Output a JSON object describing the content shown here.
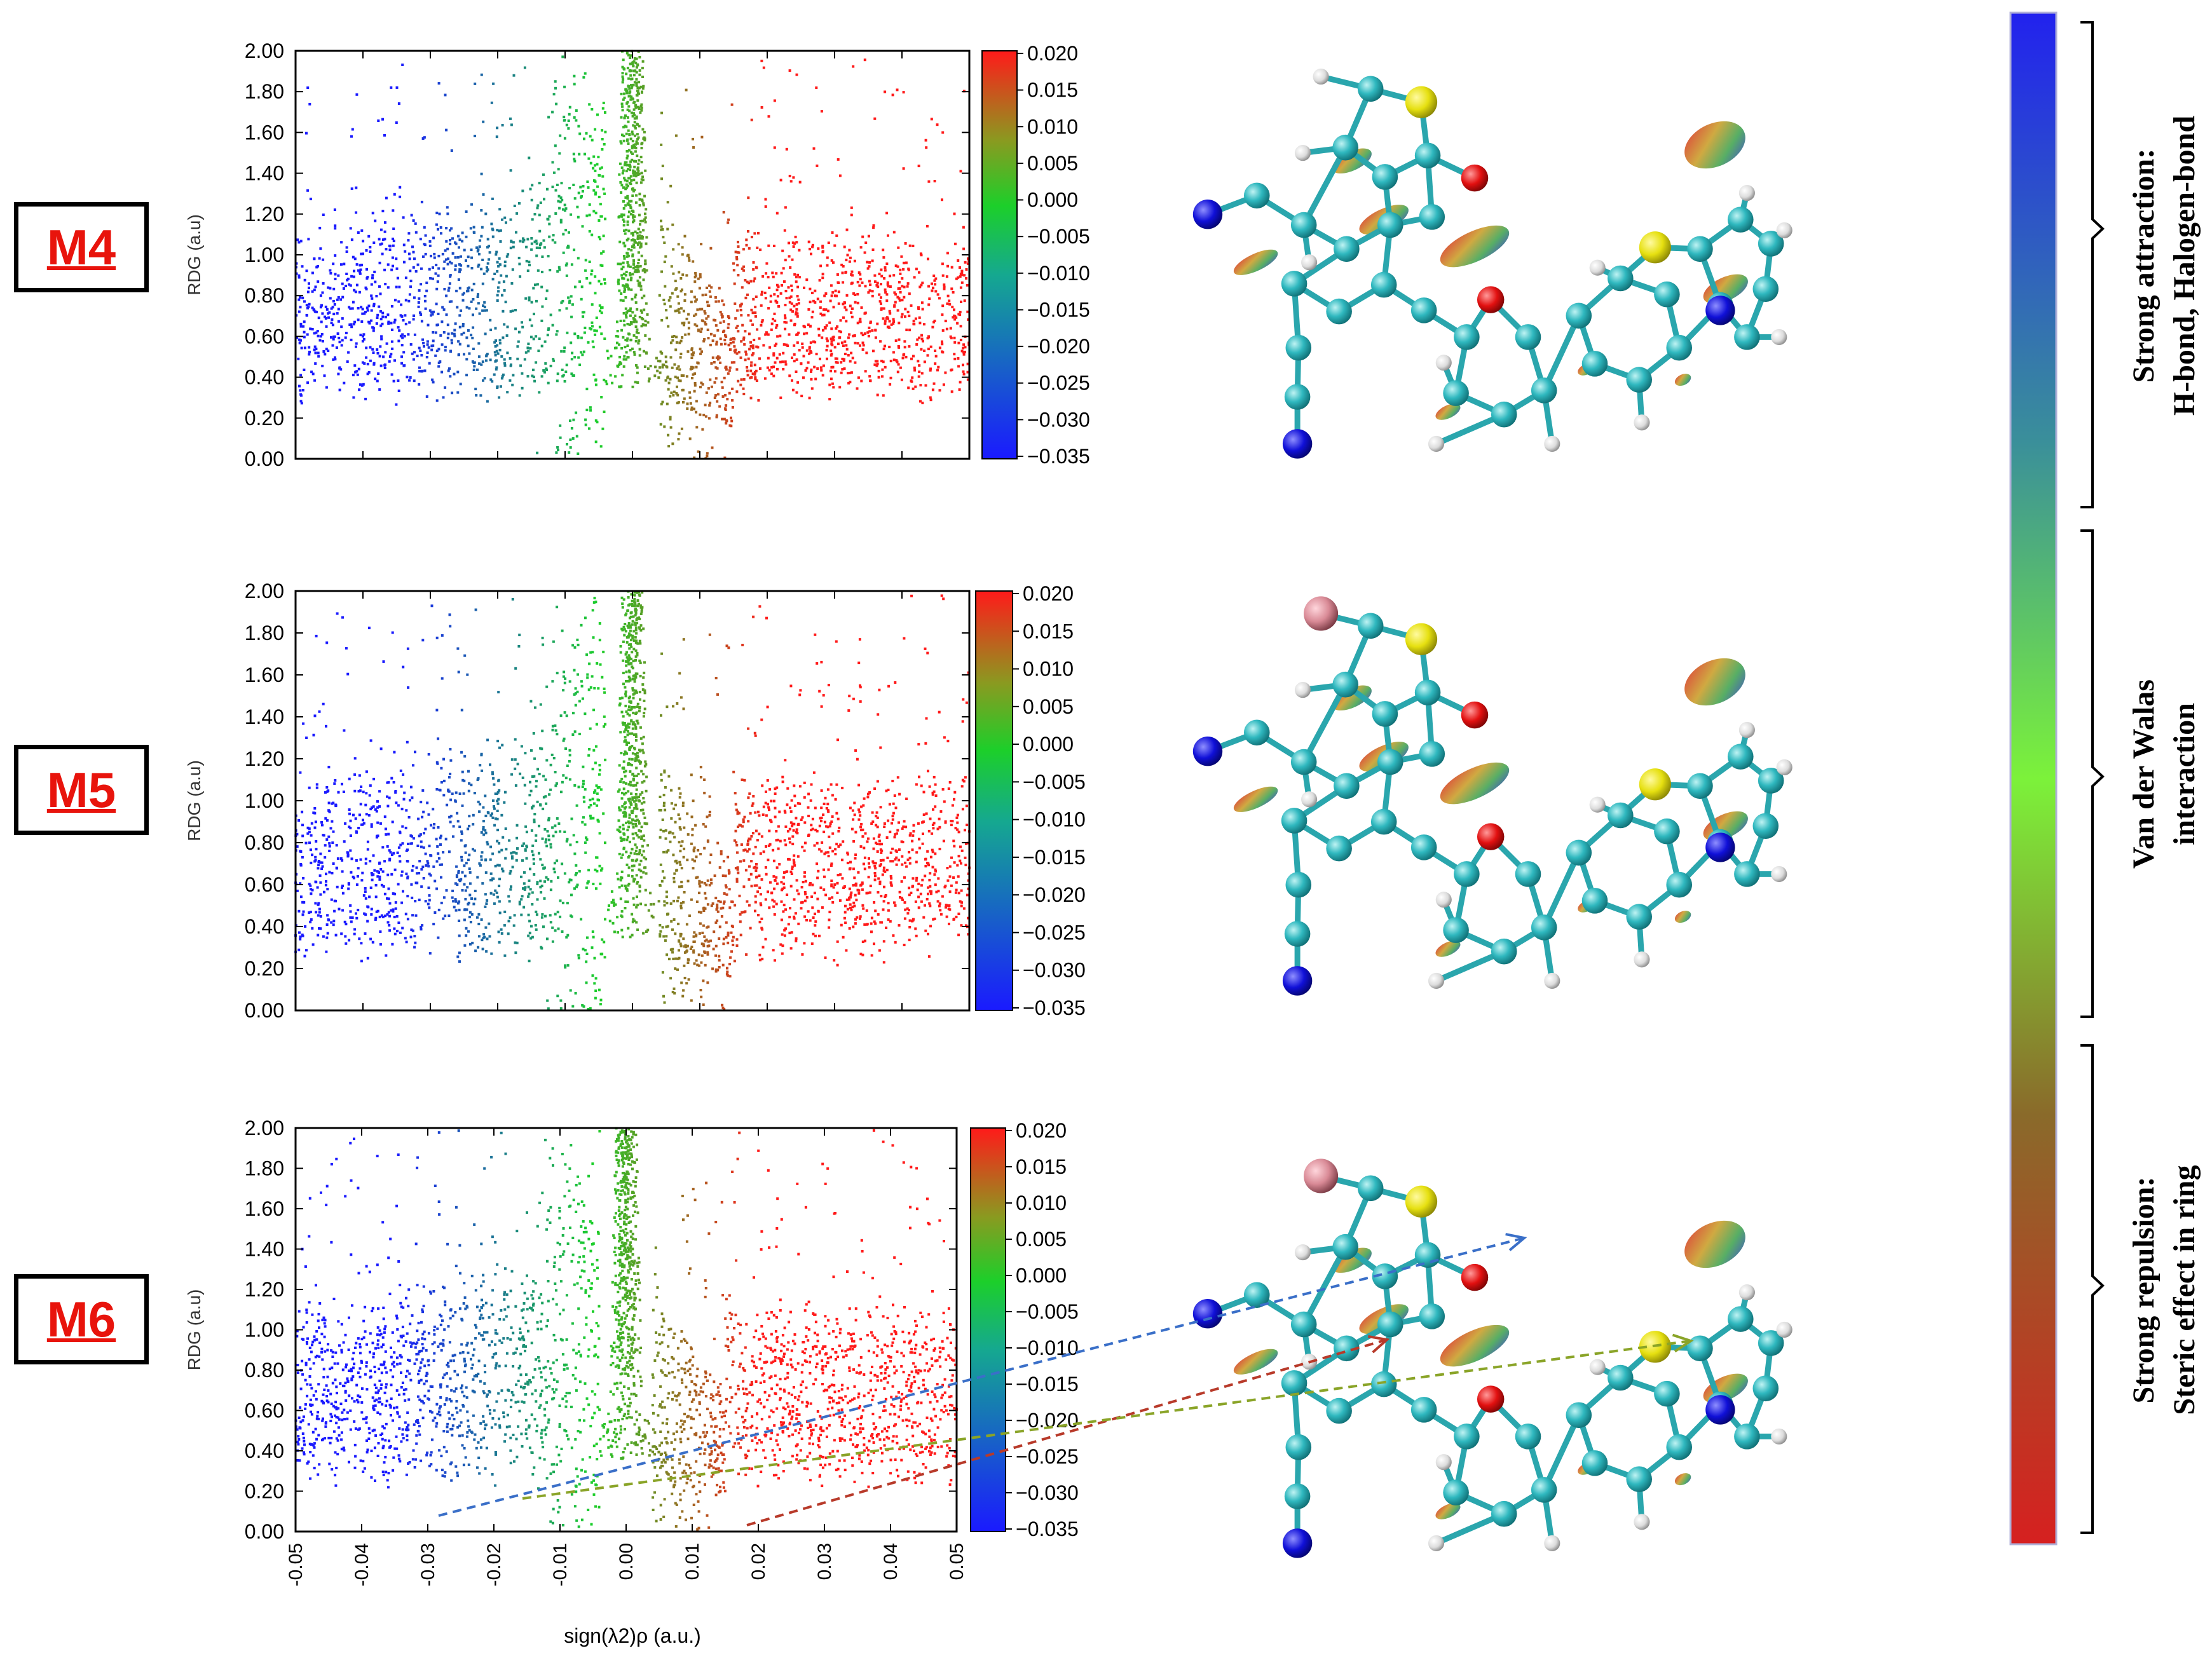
{
  "panels": [
    {
      "label": "M4",
      "cbar_min": -0.035,
      "cbar_max": 0.02
    },
    {
      "label": "M5",
      "cbar_min": -0.035,
      "cbar_max": 0.02
    },
    {
      "label": "M6",
      "cbar_min": -0.035,
      "cbar_max": 0.02
    }
  ],
  "colorbar_ticks": [
    "0.020",
    "0.015",
    "0.010",
    "0.005",
    "0.000",
    "−0.005",
    "−0.010",
    "−0.015",
    "−0.020",
    "−0.025",
    "−0.030",
    "−0.035"
  ],
  "legend": {
    "top": [
      "Strong attraction:",
      "H-bond, Halogen-bond"
    ],
    "middle": [
      "Van der Walas",
      "interaction"
    ],
    "bottom": [
      "Strong repulsion:",
      "Steric effect in ring"
    ],
    "colors": {
      "top": "#2222ee",
      "upper_mid": "#3a8f9a",
      "middle": "#7cf23a",
      "lower_mid": "#8a6a2a",
      "bottom": "#d62020"
    }
  },
  "chart_data": {
    "type": "scatter",
    "title": "",
    "xlabel": "sign(λ2)ρ (a.u.)",
    "ylabel": "RDG (a.u)",
    "xlim": [
      -0.05,
      0.05
    ],
    "ylim": [
      0.0,
      2.0
    ],
    "x_ticks": [
      "-0.05",
      "-0.04",
      "-0.03",
      "-0.02",
      "-0.01",
      "0.00",
      "0.01",
      "0.02",
      "0.03",
      "0.04",
      "0.05"
    ],
    "y_ticks": [
      "2.00",
      "1.80",
      "1.60",
      "1.40",
      "1.20",
      "1.00",
      "0.80",
      "0.60",
      "0.40",
      "0.20",
      "0.00"
    ],
    "colormap": {
      "min": -0.035,
      "max": 0.02,
      "colors": [
        "#1a1aff",
        "#1ccf2a",
        "#ff1a1a"
      ]
    },
    "series": [
      {
        "name": "M4",
        "spike_x": 0.0,
        "band_low_y": [
          0.25,
          0.45
        ],
        "band_high_y": [
          0.9,
          1.5
        ]
      },
      {
        "name": "M5",
        "spike_x": 0.0,
        "band_low_y": [
          0.2,
          0.45
        ],
        "band_high_y": [
          0.9,
          1.6
        ]
      },
      {
        "name": "M6",
        "spike_x": 0.0,
        "band_low_y": [
          0.2,
          0.45
        ],
        "band_high_y": [
          0.9,
          1.5
        ]
      }
    ]
  },
  "molecules": [
    {
      "name": "M4",
      "halogen": "none"
    },
    {
      "name": "M5",
      "halogen": "Br"
    },
    {
      "name": "M6",
      "halogen": "Br"
    }
  ]
}
